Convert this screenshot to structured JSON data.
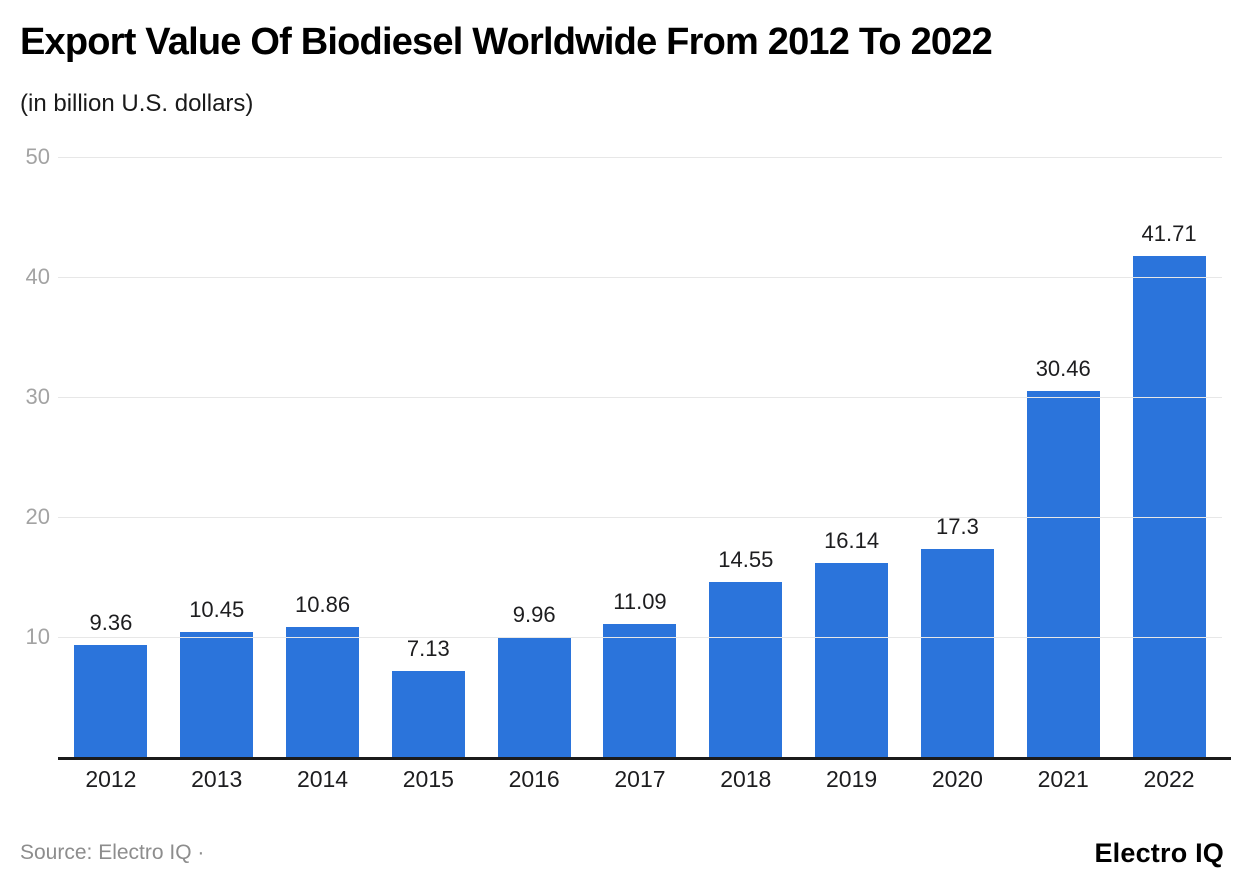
{
  "header": {
    "title": "Export Value Of Biodiesel Worldwide From 2012 To 2022",
    "subtitle": "(in billion U.S. dollars)"
  },
  "footer": {
    "source": "Source: Electro IQ ·",
    "brand": "Electro IQ"
  },
  "colors": {
    "bar": "#2b74db",
    "gridline": "#e7e7e7",
    "axis_line": "#1b1b1b",
    "y_tick_text": "#a3a3a3",
    "label_text": "#1d1d1f",
    "source_text": "#8d8d8d"
  },
  "chart_data": {
    "type": "bar",
    "title": "Export Value Of Biodiesel Worldwide From 2012 To 2022",
    "subtitle": "(in billion U.S. dollars)",
    "categories": [
      "2012",
      "2013",
      "2014",
      "2015",
      "2016",
      "2017",
      "2018",
      "2019",
      "2020",
      "2021",
      "2022"
    ],
    "values": [
      9.36,
      10.45,
      10.86,
      7.13,
      9.96,
      11.09,
      14.55,
      16.14,
      17.3,
      30.46,
      41.71
    ],
    "value_labels": [
      "9.36",
      "10.45",
      "10.86",
      "7.13",
      "9.96",
      "11.09",
      "14.55",
      "16.14",
      "17.3",
      "30.46",
      "41.71"
    ],
    "xlabel": "",
    "ylabel": "",
    "ylim": [
      0,
      50
    ],
    "yticks": [
      10,
      20,
      30,
      40,
      50
    ],
    "grid": true,
    "legend": false,
    "bar_color": "#2b74db"
  }
}
